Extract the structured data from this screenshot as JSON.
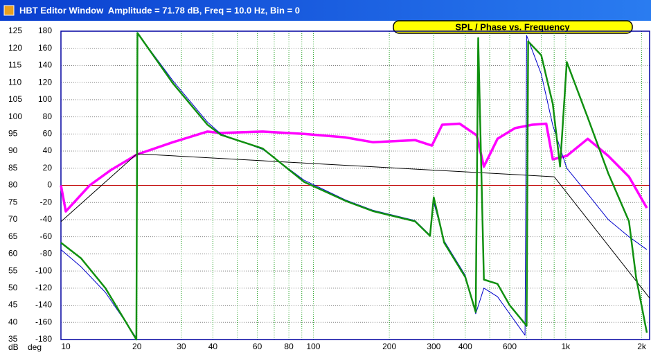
{
  "window_title": "HBT Editor Window  Amplitude = 71.78 dB, Freq = 10.0 Hz, Bin = 0",
  "chart_data": {
    "type": "line",
    "title": "SPL / Phase vs. Frequency",
    "ylabel": "dB",
    "y2label": "deg",
    "xscale": "log",
    "xlim": [
      10,
      2150
    ],
    "xticks": [
      10,
      20,
      30,
      40,
      60,
      80,
      100,
      200,
      300,
      400,
      600,
      {
        "value": 1000,
        "label": "1k"
      },
      {
        "value": 2000,
        "label": "2k"
      }
    ],
    "xminor": [
      50,
      70,
      90,
      500,
      700,
      800,
      900
    ],
    "ylim": [
      35,
      125
    ],
    "yticks": [
      35,
      40,
      45,
      50,
      55,
      60,
      65,
      70,
      75,
      80,
      85,
      90,
      95,
      100,
      105,
      110,
      115,
      120,
      125
    ],
    "y2lim": [
      -180,
      180
    ],
    "y2ticks": [
      -180,
      -160,
      -140,
      -120,
      -100,
      -80,
      -60,
      -40,
      -20,
      0,
      20,
      40,
      60,
      80,
      100,
      120,
      140,
      160,
      180
    ],
    "grid": true,
    "reference_line": {
      "value": 80,
      "color": "#c00000"
    },
    "series": [
      {
        "color": "#ff00ff",
        "axis": "y",
        "width": 3.5,
        "x": [
          10,
          10.45,
          13,
          15.8,
          20,
          27.8,
          38,
          43,
          63,
          92,
          134,
          172,
          253,
          295,
          324,
          380,
          444,
          474,
          537,
          630,
          737,
          837,
          889,
          1010,
          1223,
          1474,
          1781,
          2096
        ],
        "values": [
          80,
          72.4,
          80,
          84.5,
          89,
          92.6,
          95.7,
          95.3,
          95.7,
          95,
          94,
          92.6,
          93.2,
          91.6,
          97.7,
          98,
          94.6,
          85.5,
          93.6,
          96.7,
          97.7,
          98,
          87.6,
          88.6,
          93.6,
          88.6,
          82.5,
          73.4
        ]
      },
      {
        "color": "#000000",
        "axis": "y",
        "width": 1,
        "x": [
          10,
          20,
          900,
          2150
        ],
        "values": [
          69.4,
          89.2,
          82.5,
          47.1
        ]
      },
      {
        "color": "#0000cc",
        "axis": "y2",
        "width": 1,
        "x": [
          10,
          12,
          15,
          19.9,
          20.1,
          27.8,
          38,
          43,
          63,
          92,
          134,
          172,
          253,
          290,
          300,
          330,
          400,
          440,
          474,
          537,
          600,
          690,
          700,
          800,
          889,
          1010,
          1223,
          1474,
          1781,
          2096
        ],
        "values": [
          -75,
          -95,
          -125,
          -178,
          178,
          122,
          74,
          60,
          42,
          6,
          -17,
          -29,
          -41,
          -58,
          -20,
          -65,
          -105,
          -150,
          -120,
          -130,
          -150,
          -175,
          175,
          130,
          70,
          20,
          -10,
          -40,
          -60,
          -75
        ]
      },
      {
        "color": "#109010",
        "axis": "y2",
        "width": 2.5,
        "x": [
          10,
          12,
          15,
          19.9,
          20.1,
          27.8,
          38,
          43,
          63,
          92,
          134,
          172,
          253,
          290,
          300,
          330,
          400,
          440,
          450,
          474,
          537,
          600,
          700,
          710,
          800,
          889,
          950,
          1010,
          1223,
          1474,
          1781,
          1900,
          2096
        ],
        "values": [
          -67,
          -85,
          -120,
          -180,
          178,
          119,
          71,
          59,
          43,
          4,
          -18,
          -30,
          -42,
          -59,
          -14,
          -67,
          -107,
          -148,
          172,
          -110,
          -115,
          -140,
          -164,
          168,
          152,
          95,
          22,
          144,
          79,
          14,
          -42,
          -107,
          -172
        ]
      }
    ]
  }
}
